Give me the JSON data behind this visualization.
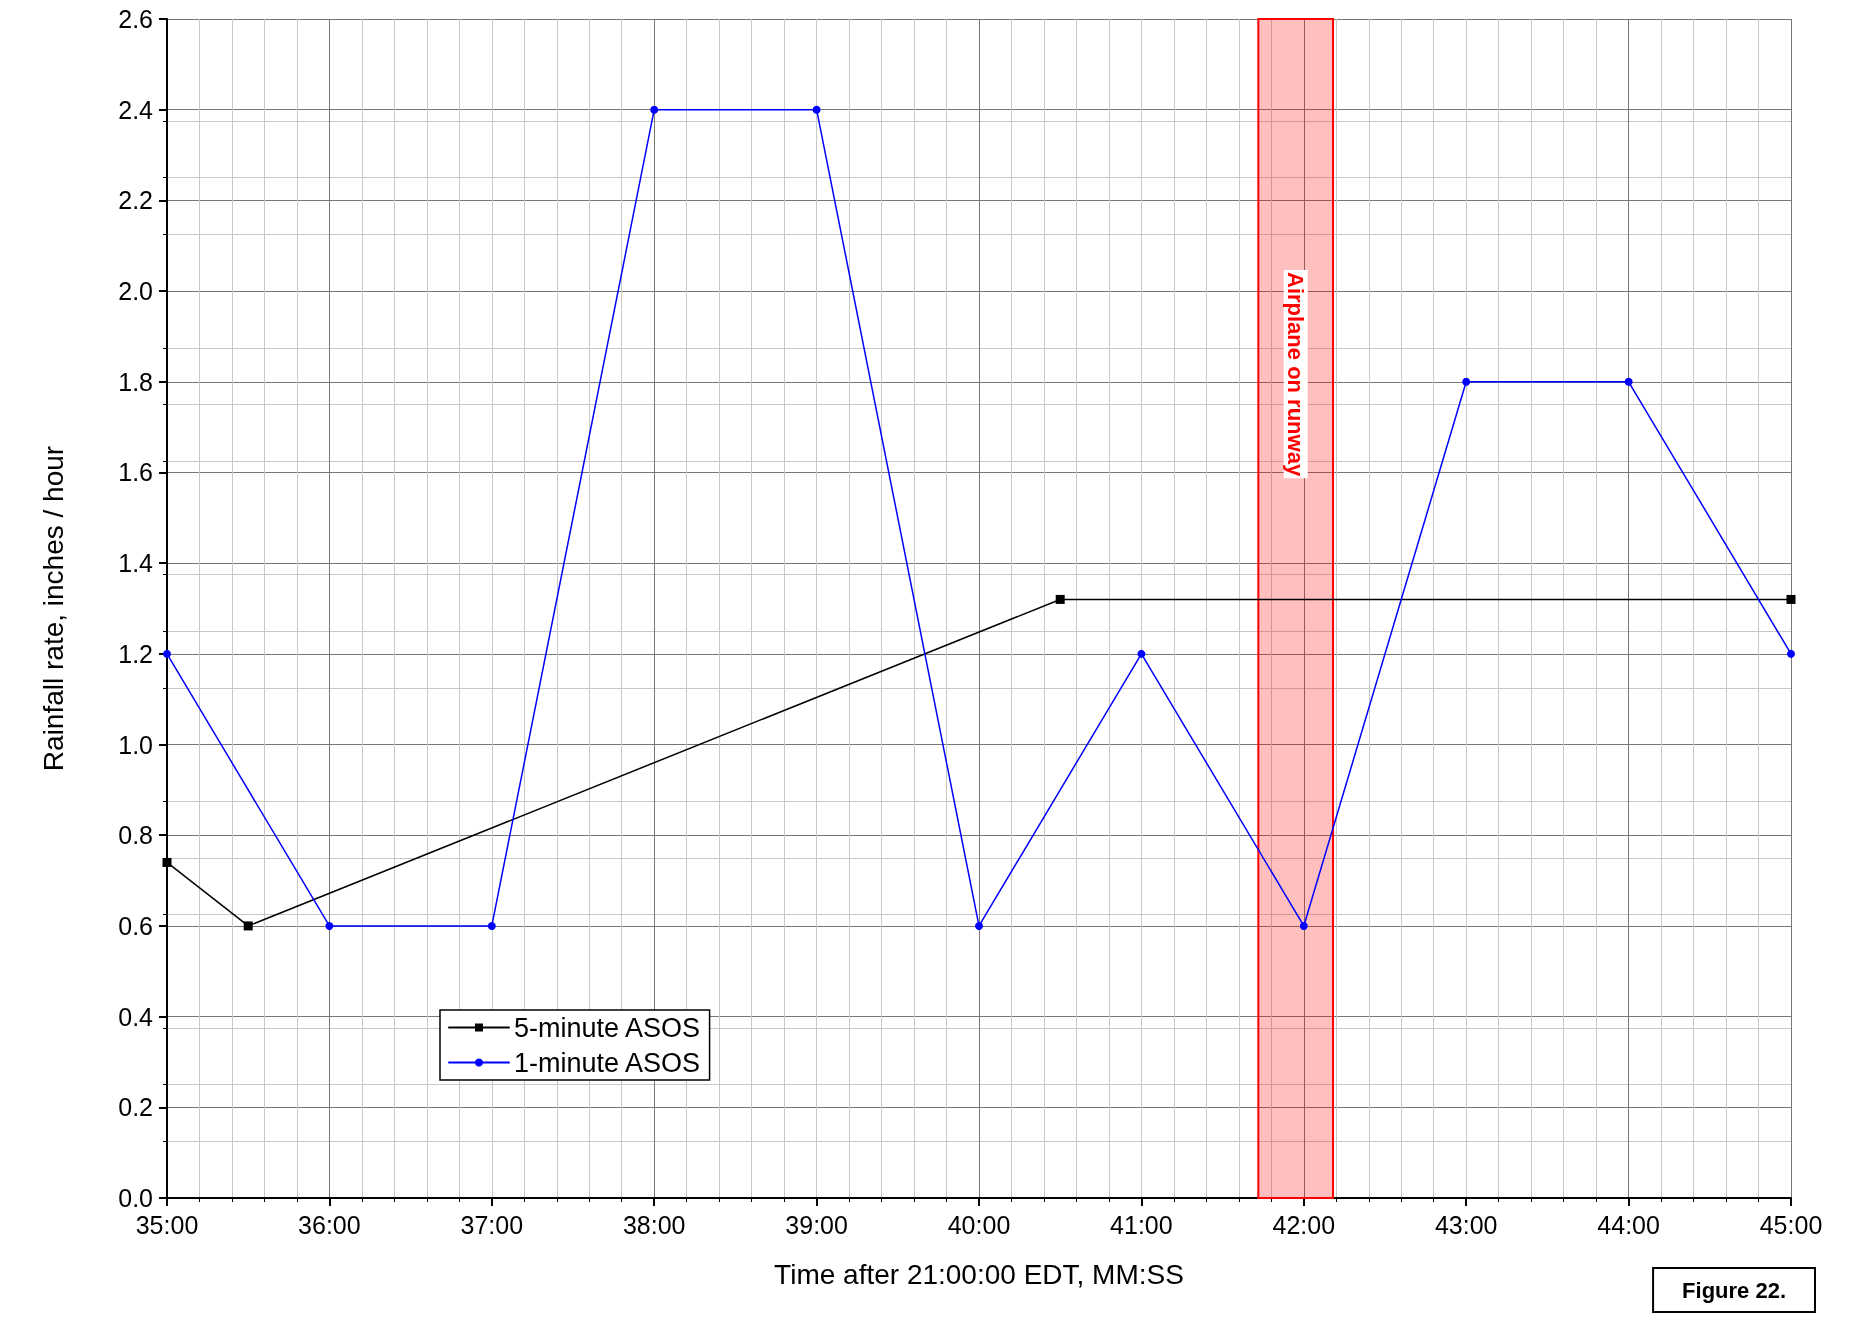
{
  "chart_data": {
    "type": "line",
    "xlabel": "Time after 21:00:00 EDT, MM:SS",
    "ylabel": "Rainfall rate, inches / hour",
    "xlim": [
      35,
      45
    ],
    "xticks": [
      {
        "value": 35,
        "label": "35:00"
      },
      {
        "value": 36,
        "label": "36:00"
      },
      {
        "value": 37,
        "label": "37:00"
      },
      {
        "value": 38,
        "label": "38:00"
      },
      {
        "value": 39,
        "label": "39:00"
      },
      {
        "value": 40,
        "label": "40:00"
      },
      {
        "value": 41,
        "label": "41:00"
      },
      {
        "value": 42,
        "label": "42:00"
      },
      {
        "value": 43,
        "label": "43:00"
      },
      {
        "value": 44,
        "label": "44:00"
      },
      {
        "value": 45,
        "label": "45:00"
      }
    ],
    "ylim": [
      0,
      2.6
    ],
    "yticks": [
      {
        "value": 0,
        "label": "0.0"
      },
      {
        "value": 0.2,
        "label": "0.2"
      },
      {
        "value": 0.4,
        "label": "0.4"
      },
      {
        "value": 0.6,
        "label": "0.6"
      },
      {
        "value": 0.8,
        "label": "0.8"
      },
      {
        "value": 1,
        "label": "1.0"
      },
      {
        "value": 1.2,
        "label": "1.2"
      },
      {
        "value": 1.4,
        "label": "1.4"
      },
      {
        "value": 1.6,
        "label": "1.6"
      },
      {
        "value": 1.8,
        "label": "1.8"
      },
      {
        "value": 2,
        "label": "2.0"
      },
      {
        "value": 2.2,
        "label": "2.2"
      },
      {
        "value": 2.4,
        "label": "2.4"
      },
      {
        "value": 2.6,
        "label": "2.6"
      }
    ],
    "series": [
      {
        "name": "5-minute ASOS",
        "color": "#000000",
        "marker": "square",
        "x": [
          35,
          35.5,
          40.5,
          45
        ],
        "values": [
          0.74,
          0.6,
          1.32,
          1.32
        ]
      },
      {
        "name": "1-minute ASOS",
        "color": "#0000ff",
        "marker": "circle",
        "x": [
          35,
          36,
          37,
          38,
          39,
          40,
          41,
          42,
          43,
          44,
          45
        ],
        "values": [
          1.2,
          0.6,
          0.6,
          2.4,
          2.4,
          0.6,
          1.2,
          0.6,
          1.8,
          1.8,
          1.2
        ]
      }
    ],
    "bands": [
      {
        "axis": "x",
        "from": 41.72,
        "to": 42.18,
        "label": "Airplane on runway",
        "color": "#ff0000"
      }
    ],
    "grid": true,
    "legend": "bottom left",
    "line_style": "solid",
    "annotations": [
      "Figure 22."
    ]
  }
}
